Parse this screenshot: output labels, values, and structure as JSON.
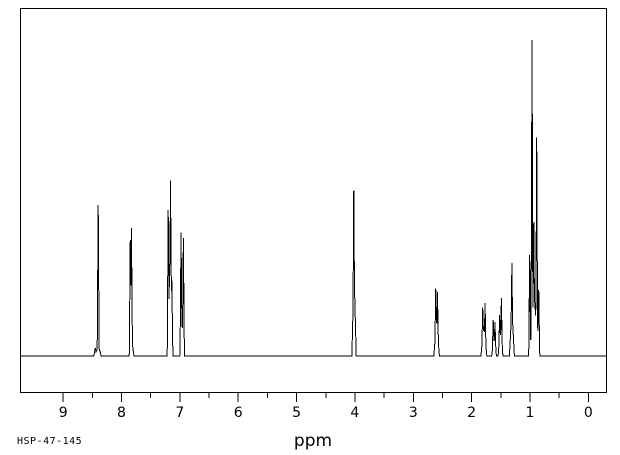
{
  "window": {
    "background_color": "#ffffff",
    "trace_color": "#000000",
    "frame_color": "#000000"
  },
  "footer": {
    "sample_id": "HSP-47-145"
  },
  "chart_data": {
    "type": "line",
    "subtype": "1H-NMR-spectrum",
    "title": "",
    "xlabel": "ppm",
    "ylabel": "",
    "grid": false,
    "legend": "none",
    "x_axis": {
      "reversed": true,
      "major_ticks": [
        9,
        8,
        7,
        6,
        5,
        4,
        3,
        2,
        1,
        0
      ],
      "minor_tick_step": 0.5,
      "xlim_left_ppm": 9.74,
      "xlim_right_ppm": -0.32
    },
    "y_axis": {
      "units": "relative intensity (unlabeled)",
      "max_relative_height": 1.0
    },
    "peaks": [
      {
        "ppm": 8.45,
        "h": 0.025,
        "w": 1.5
      },
      {
        "ppm": 8.4,
        "h": 0.478,
        "w": 1.0
      },
      {
        "ppm": 8.4,
        "h": 0.035,
        "w": 3.0
      },
      {
        "ppm": 7.85,
        "h": 0.367,
        "w": 1.0
      },
      {
        "ppm": 7.83,
        "h": 0.405,
        "w": 1.0
      },
      {
        "ppm": 7.83,
        "h": 0.06,
        "w": 2.5
      },
      {
        "ppm": 7.2,
        "h": 0.462,
        "w": 1.0
      },
      {
        "ppm": 7.17,
        "h": 0.32,
        "w": 2.2
      },
      {
        "ppm": 7.16,
        "h": 0.557,
        "w": 1.0
      },
      {
        "ppm": 7.14,
        "h": 0.25,
        "w": 1.2
      },
      {
        "ppm": 6.98,
        "h": 0.392,
        "w": 1.0
      },
      {
        "ppm": 6.96,
        "h": 0.1,
        "w": 2.5
      },
      {
        "ppm": 6.94,
        "h": 0.373,
        "w": 1.0
      },
      {
        "ppm": 4.02,
        "h": 0.525,
        "w": 1.0
      },
      {
        "ppm": 4.015,
        "h": 0.27,
        "w": 2.2
      },
      {
        "ppm": 2.615,
        "h": 0.215,
        "w": 1.0
      },
      {
        "ppm": 2.6,
        "h": 0.11,
        "w": 2.8
      },
      {
        "ppm": 2.585,
        "h": 0.203,
        "w": 1.0
      },
      {
        "ppm": 1.81,
        "h": 0.155,
        "w": 1.0
      },
      {
        "ppm": 1.79,
        "h": 0.09,
        "w": 3.0
      },
      {
        "ppm": 1.77,
        "h": 0.168,
        "w": 1.0
      },
      {
        "ppm": 1.63,
        "h": 0.114,
        "w": 1.0
      },
      {
        "ppm": 1.615,
        "h": 0.05,
        "w": 2.5
      },
      {
        "ppm": 1.6,
        "h": 0.108,
        "w": 1.0
      },
      {
        "ppm": 1.52,
        "h": 0.13,
        "w": 1.0
      },
      {
        "ppm": 1.505,
        "h": 0.07,
        "w": 2.5
      },
      {
        "ppm": 1.49,
        "h": 0.184,
        "w": 1.0
      },
      {
        "ppm": 1.31,
        "h": 0.294,
        "w": 1.0
      },
      {
        "ppm": 1.31,
        "h": 0.15,
        "w": 2.5
      },
      {
        "ppm": 1.005,
        "h": 0.32,
        "w": 1.0
      },
      {
        "ppm": 0.965,
        "h": 1.0,
        "w": 1.0
      },
      {
        "ppm": 0.935,
        "h": 0.424,
        "w": 1.0
      },
      {
        "ppm": 0.93,
        "h": 0.2,
        "w": 4.5
      },
      {
        "ppm": 0.885,
        "h": 0.693,
        "w": 1.0
      },
      {
        "ppm": 0.88,
        "h": 0.12,
        "w": 3.0
      },
      {
        "ppm": 0.85,
        "h": 0.209,
        "w": 1.0
      }
    ]
  }
}
